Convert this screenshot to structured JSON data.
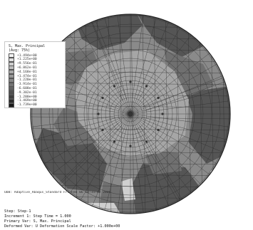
{
  "legend": {
    "title_lines": [
      "S, Max. Principal",
      "(Avg: 75%)"
    ],
    "values": [
      "+1.494e+00",
      "+1.225e+00",
      "+9.556e-01",
      "+6.862e-01",
      "+4.168e-01",
      "+1.474e-01",
      "-1.220e-01",
      "-3.914e-01",
      "-6.608e-01",
      "-9.302e-01",
      "-1.200e+00",
      "-1.469e+00",
      "-1.739e+00"
    ],
    "swatch_colors": [
      "#f2f2f2",
      "#e0e0e0",
      "#cecece",
      "#bcbcbc",
      "#aaaaaa",
      "#989898",
      "#868686",
      "#747474",
      "#626262",
      "#505050",
      "#3e3e3e",
      "#2c2c2c",
      "#1a1a1a"
    ]
  },
  "status_line": "ODB: Adaptive_Abaqus_Standard    Fri Feb 06 10:11:42 2004",
  "info": {
    "lines": [
      "Step: Step-1",
      "Increment 1: Step Time = 1.000",
      "Primary Var: S, Max. Principal",
      "Deformed Var: U  Deformation Scale Factor: +1.000e+00"
    ]
  },
  "plot_colors": {
    "dark": "#555555",
    "mid_dark": "#707070",
    "mid": "#8a8a8a",
    "light": "#a6a6a6",
    "lightest": "#cfcfcf",
    "mesh": "#2a2a2a"
  }
}
